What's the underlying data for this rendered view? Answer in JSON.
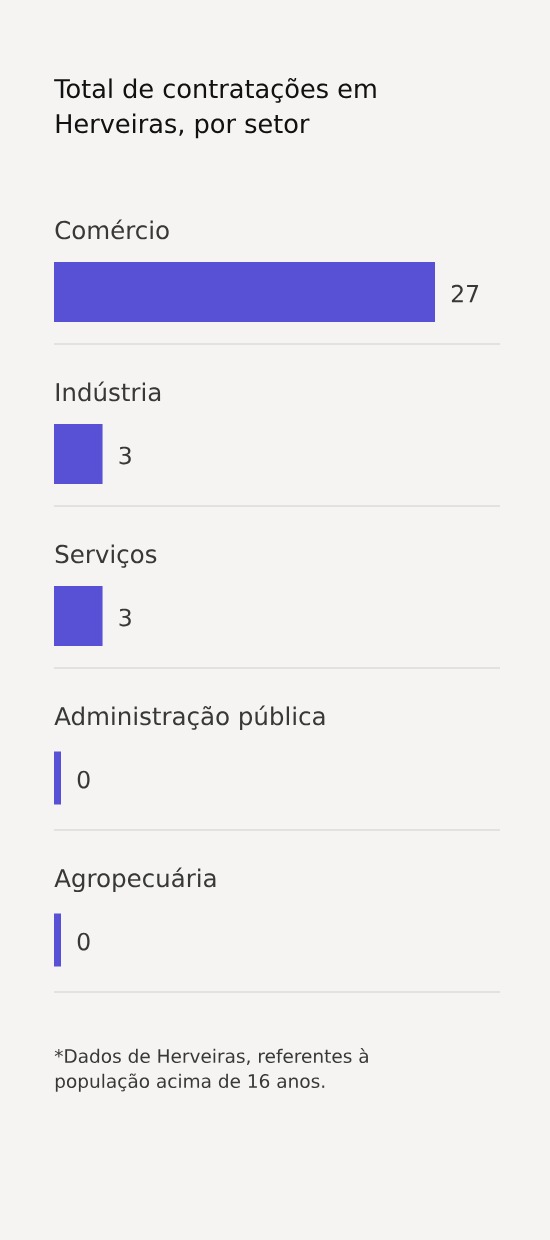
{
  "chart_data": {
    "type": "bar",
    "orientation": "horizontal",
    "title": "Total de contratações em Herveiras, por setor",
    "categories": [
      "Comércio",
      "Indústria",
      "Serviços",
      "Administração pública",
      "Agropecuária"
    ],
    "values": [
      27,
      3,
      3,
      0,
      0
    ],
    "color": "#5851d6",
    "data_labels": true,
    "grid": "y",
    "annotations": [
      "*Dados de Herveiras, referentes à população acima de 16 anos."
    ]
  }
}
